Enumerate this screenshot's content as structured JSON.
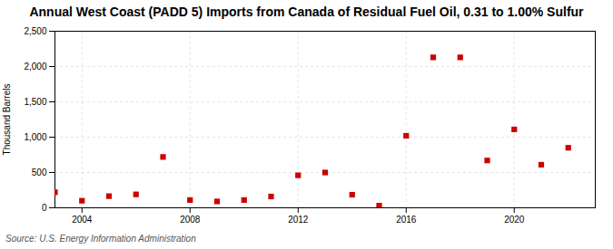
{
  "chart_data": {
    "type": "scatter",
    "title": "Annual West Coast (PADD 5) Imports from Canada of Residual Fuel Oil, 0.31 to 1.00% Sulfur",
    "ylabel": "Thousand Barrels",
    "source": "Source: U.S. Energy Information Administration",
    "x": [
      2003,
      2004,
      2005,
      2006,
      2007,
      2008,
      2009,
      2010,
      2011,
      2012,
      2013,
      2014,
      2015,
      2016,
      2017,
      2018,
      2019,
      2020,
      2021,
      2022
    ],
    "values": [
      220,
      100,
      165,
      190,
      720,
      110,
      90,
      110,
      160,
      460,
      500,
      185,
      30,
      1020,
      2130,
      2130,
      670,
      1110,
      610,
      850
    ],
    "color": "#cc0000",
    "marker": "square",
    "xlim": [
      2003,
      2023
    ],
    "xticks": [
      2004,
      2008,
      2012,
      2016,
      2020
    ],
    "ylim": [
      0,
      2500
    ],
    "yticks": [
      0,
      500,
      {
        "value": 1000,
        "label": "1,000"
      },
      {
        "value": 1500,
        "label": "1,500"
      },
      {
        "value": 2000,
        "label": "2,000"
      },
      {
        "value": 2500,
        "label": "2,500"
      }
    ],
    "grid": true
  }
}
